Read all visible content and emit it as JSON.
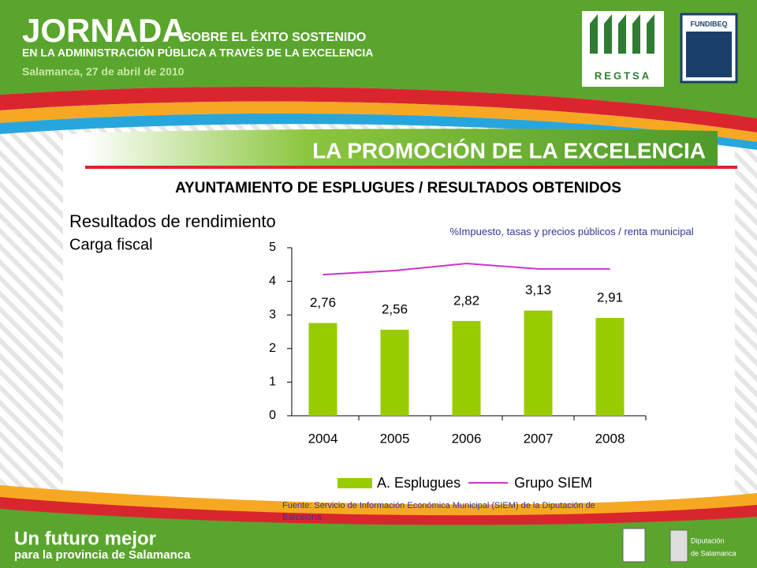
{
  "header": {
    "title": "JORNADA",
    "subtitle": "SOBRE EL ÉXITO SOSTENIDO",
    "line2": "EN LA ADMINISTRACIÓN PÚBLICA A TRAVÉS DE LA EXCELENCIA",
    "date": "Salamanca, 27 de abril de 2010",
    "logo_left": "REGTSA",
    "logo_right": "FUNDIBEQ"
  },
  "section_title": "LA PROMOCIÓN DE LA EXCELENCIA",
  "slide_title": "AYUNTAMIENTO DE ESPLUGUES / RESULTADOS OBTENIDOS",
  "heading": "Resultados de rendimiento",
  "subheading": "Carga fiscal",
  "chart_data": {
    "type": "bar",
    "annotation": "%Impuesto, tasas y precios públicos / renta municipal",
    "categories": [
      "2004",
      "2005",
      "2006",
      "2007",
      "2008"
    ],
    "series": [
      {
        "name": "A. Esplugues",
        "type": "bar",
        "color": "#99cc00",
        "values": [
          2.76,
          2.56,
          2.82,
          3.13,
          2.91
        ],
        "value_labels": [
          "2,76",
          "2,56",
          "2,82",
          "3,13",
          "2,91"
        ]
      },
      {
        "name": "Grupo SIEM",
        "type": "line",
        "color": "#cc33cc",
        "values": [
          4.2,
          4.32,
          4.53,
          4.37,
          4.37
        ]
      }
    ],
    "ylim": [
      0,
      5
    ],
    "yticks": [
      0,
      1,
      2,
      3,
      4,
      5
    ]
  },
  "source": "Fuente: Servicio de Información Económica Municipal (SIEM) de la Diputación de Barcelona",
  "footer": {
    "slogan": "Un futuro mejor",
    "slogan2": "para la provincia de Salamanca",
    "logo_line1": "Diputación",
    "logo_line2": "de Salamanca"
  }
}
